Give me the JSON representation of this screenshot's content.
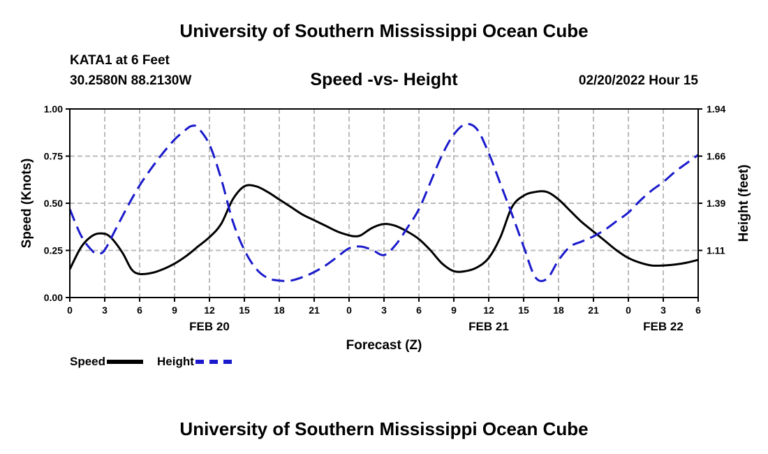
{
  "header": {
    "title": "University of Southern Mississippi Ocean Cube",
    "station": "KATA1 at 6 Feet",
    "coords": "30.2580N  88.2130W",
    "subtitle": "Speed -vs- Height",
    "datetime": "02/20/2022 Hour 15"
  },
  "footer": {
    "title": "University of Southern Mississippi Ocean Cube"
  },
  "chart_data": {
    "type": "line",
    "title": "Speed -vs- Height",
    "xlabel": "Forecast (Z)",
    "ylabel_left": "Speed (Knots)",
    "ylabel_right": "Height (feet)",
    "x_hours": [
      0,
      54
    ],
    "x_tick_labels": [
      "0",
      "3",
      "6",
      "9",
      "12",
      "15",
      "18",
      "21",
      "0",
      "3",
      "6",
      "9",
      "12",
      "15",
      "18",
      "21",
      "0",
      "3",
      "6"
    ],
    "day_labels": [
      {
        "label": "FEB 20",
        "hour": 12
      },
      {
        "label": "FEB 21",
        "hour": 36
      },
      {
        "label": "FEB 22",
        "hour": 51
      }
    ],
    "ylim_left": [
      0,
      1.0
    ],
    "left_ticks": [
      "0.00",
      "0.25",
      "0.50",
      "0.75",
      "1.00"
    ],
    "ylim_right": [
      0.83,
      1.94
    ],
    "right_ticks": [
      "1.11",
      "1.39",
      "1.66",
      "1.94"
    ],
    "grid": true,
    "colors": {
      "speed": "#000000",
      "height": "#1a1acc",
      "grid": "#bbbbbb"
    },
    "series": [
      {
        "name": "Speed",
        "axis": "left",
        "style": "solid",
        "x": [
          0,
          1,
          2,
          2.8,
          3.5,
          4.5,
          5.3,
          6,
          7,
          8,
          9,
          10,
          11,
          12,
          13,
          14,
          15,
          16,
          17,
          18,
          19,
          20,
          21,
          22,
          23,
          24,
          24.5,
          25,
          26,
          27,
          28,
          29,
          30,
          31,
          32,
          33,
          34,
          35,
          36,
          37,
          38,
          39,
          40,
          41,
          42,
          43,
          44,
          45,
          46,
          47,
          48,
          49,
          50,
          51,
          52,
          53,
          54
        ],
        "values": [
          0.15,
          0.27,
          0.33,
          0.34,
          0.32,
          0.24,
          0.15,
          0.125,
          0.13,
          0.15,
          0.18,
          0.22,
          0.27,
          0.32,
          0.39,
          0.52,
          0.59,
          0.59,
          0.56,
          0.52,
          0.48,
          0.44,
          0.41,
          0.38,
          0.35,
          0.33,
          0.325,
          0.33,
          0.37,
          0.39,
          0.38,
          0.35,
          0.31,
          0.25,
          0.18,
          0.14,
          0.14,
          0.16,
          0.21,
          0.32,
          0.48,
          0.54,
          0.56,
          0.56,
          0.52,
          0.46,
          0.4,
          0.35,
          0.3,
          0.25,
          0.21,
          0.185,
          0.17,
          0.17,
          0.175,
          0.185,
          0.2
        ]
      },
      {
        "name": "Height",
        "axis": "right",
        "style": "dashed",
        "x": [
          0,
          1,
          2,
          2.5,
          3,
          4,
          5,
          6,
          7,
          8,
          9,
          10,
          10.5,
          11,
          12,
          13,
          14,
          15,
          16,
          17,
          18,
          19,
          20,
          21,
          22,
          23,
          24,
          25,
          26,
          27,
          28,
          29,
          30,
          31,
          32,
          33,
          34,
          35,
          36,
          37,
          38,
          39,
          40,
          41,
          42,
          43,
          44,
          45,
          46,
          47,
          48,
          49,
          50,
          51,
          52,
          53,
          54
        ],
        "values": [
          1.35,
          1.19,
          1.1,
          1.09,
          1.11,
          1.24,
          1.37,
          1.49,
          1.59,
          1.68,
          1.76,
          1.82,
          1.84,
          1.83,
          1.73,
          1.53,
          1.28,
          1.11,
          1.0,
          0.945,
          0.93,
          0.93,
          0.95,
          0.98,
          1.02,
          1.07,
          1.12,
          1.13,
          1.11,
          1.08,
          1.14,
          1.24,
          1.35,
          1.51,
          1.67,
          1.79,
          1.85,
          1.82,
          1.68,
          1.5,
          1.32,
          1.13,
          0.95,
          0.94,
          1.05,
          1.13,
          1.16,
          1.19,
          1.23,
          1.28,
          1.33,
          1.4,
          1.46,
          1.51,
          1.57,
          1.62,
          1.67
        ]
      }
    ],
    "legend": [
      {
        "label": "Speed",
        "series": "Speed"
      },
      {
        "label": "Height",
        "series": "Height"
      }
    ],
    "legend_position": "bottom-left"
  }
}
